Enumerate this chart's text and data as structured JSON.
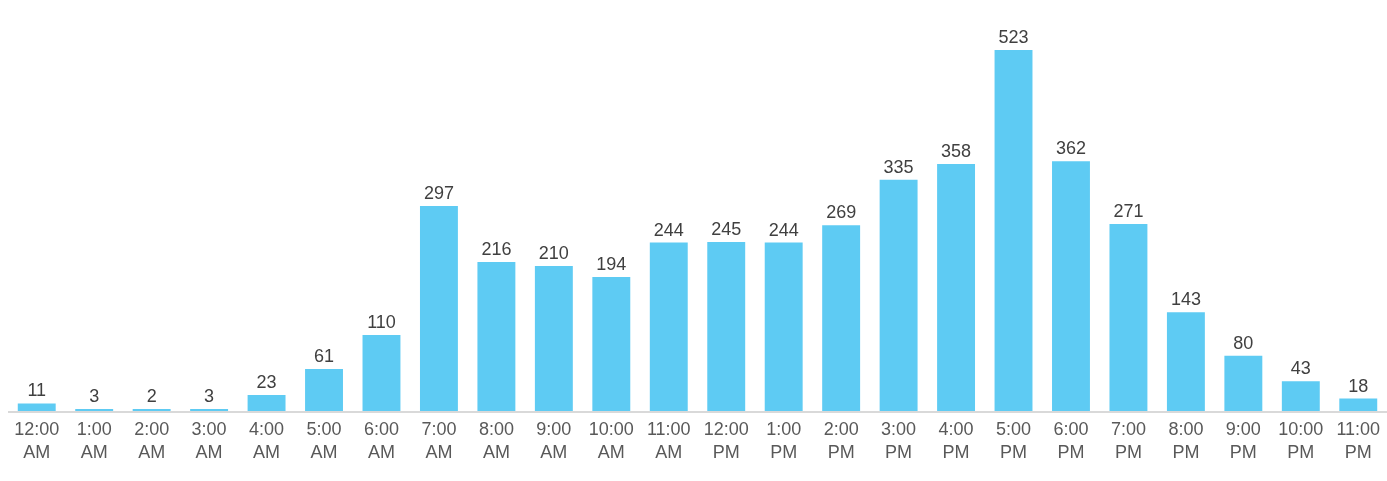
{
  "chart_data": {
    "type": "bar",
    "categories": [
      "12:00 AM",
      "1:00 AM",
      "2:00 AM",
      "3:00 AM",
      "4:00 AM",
      "5:00 AM",
      "6:00 AM",
      "7:00 AM",
      "8:00 AM",
      "9:00 AM",
      "10:00 AM",
      "11:00 AM",
      "12:00 PM",
      "1:00 PM",
      "2:00 PM",
      "3:00 PM",
      "4:00 PM",
      "5:00 PM",
      "6:00 PM",
      "7:00 PM",
      "8:00 PM",
      "9:00 PM",
      "10:00 PM",
      "11:00 PM"
    ],
    "values": [
      11,
      3,
      2,
      3,
      23,
      61,
      110,
      297,
      216,
      210,
      194,
      244,
      245,
      244,
      269,
      335,
      358,
      523,
      362,
      271,
      143,
      80,
      43,
      18
    ],
    "color": "#5ecbf3",
    "data_labels": true
  }
}
